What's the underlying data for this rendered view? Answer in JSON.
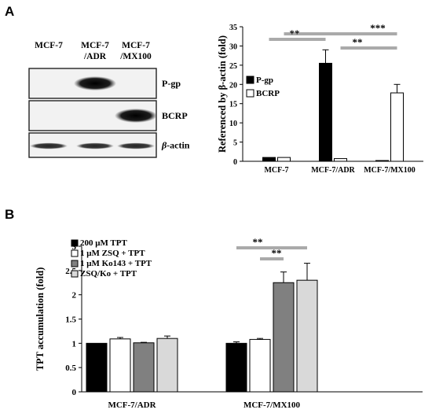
{
  "panels": {
    "a_label": "A",
    "b_label": "B"
  },
  "blot": {
    "lanes": [
      "MCF-7",
      "MCF-7\n/ADR",
      "MCF-7\n/MX100"
    ],
    "lane_lines": [
      [
        "MCF-7"
      ],
      [
        "MCF-7",
        "/ADR"
      ],
      [
        "MCF-7",
        "/MX100"
      ]
    ],
    "rows": [
      {
        "label": "P-gp",
        "italic_prefix": "",
        "bands": [
          0.0,
          1.0,
          0.0
        ]
      },
      {
        "label": "BCRP",
        "italic_prefix": "",
        "bands": [
          0.0,
          0.0,
          1.0
        ]
      },
      {
        "label": "-actin",
        "italic_prefix": "β",
        "bands": [
          0.85,
          0.85,
          0.85
        ]
      }
    ]
  },
  "chart_data": [
    {
      "type": "bar",
      "categories": [
        "MCF-7",
        "MCF-7/ADR",
        "MCF-7/MX100"
      ],
      "series": [
        {
          "name": "P-gp",
          "values": [
            1,
            25.5,
            0.2
          ],
          "errors": [
            0,
            3.5,
            0
          ],
          "color": "#000000"
        },
        {
          "name": "BCRP",
          "values": [
            1,
            0.7,
            17.8
          ],
          "errors": [
            0,
            0,
            2.2
          ],
          "color": "#ffffff"
        }
      ],
      "ylabel": "Referenced by β-actin (fold)",
      "ylim": [
        0,
        35
      ],
      "yticks": [
        0,
        5,
        10,
        15,
        20,
        25,
        30,
        35
      ],
      "legend_position": "top-left",
      "significance": [
        {
          "label": "**",
          "from": [
            0,
            0
          ],
          "to": [
            1,
            0
          ]
        },
        {
          "label": "***",
          "from": [
            0,
            1
          ],
          "to": [
            2,
            1
          ]
        },
        {
          "label": "**",
          "from": [
            1,
            1
          ],
          "to": [
            2,
            1
          ]
        }
      ]
    },
    {
      "type": "bar",
      "categories": [
        "MCF-7/ADR",
        "MCF-7/MX100"
      ],
      "series": [
        {
          "name": "200 μM TPT",
          "values": [
            1.0,
            1.0
          ],
          "errors": [
            0,
            0.03
          ],
          "color": "#000000"
        },
        {
          "name": "1 μM ZSQ + TPT",
          "values": [
            1.09,
            1.08
          ],
          "errors": [
            0.03,
            0.02
          ],
          "color": "#ffffff"
        },
        {
          "name": "1 μM Ko143 + TPT",
          "values": [
            1.01,
            2.25
          ],
          "errors": [
            0.01,
            0.22
          ],
          "color": "#808080"
        },
        {
          "name": "ZSQ/Ko + TPT",
          "values": [
            1.1,
            2.3
          ],
          "errors": [
            0.05,
            0.35
          ],
          "color": "#d9d9d9"
        }
      ],
      "ylabel": "TPT accumulation (fold)",
      "ylim": [
        0,
        3
      ],
      "yticks": [
        0,
        0.5,
        1,
        1.5,
        2,
        2.5,
        3
      ],
      "ytick_labels": [
        "0",
        "0.5",
        "1",
        "1.5",
        "2",
        "2.5",
        "3"
      ],
      "legend_position": "top-left",
      "significance": [
        {
          "label": "**",
          "from": [
            1,
            0
          ],
          "to": [
            1,
            3
          ]
        },
        {
          "label": "**",
          "from": [
            1,
            1
          ],
          "to": [
            1,
            2
          ]
        }
      ]
    }
  ]
}
